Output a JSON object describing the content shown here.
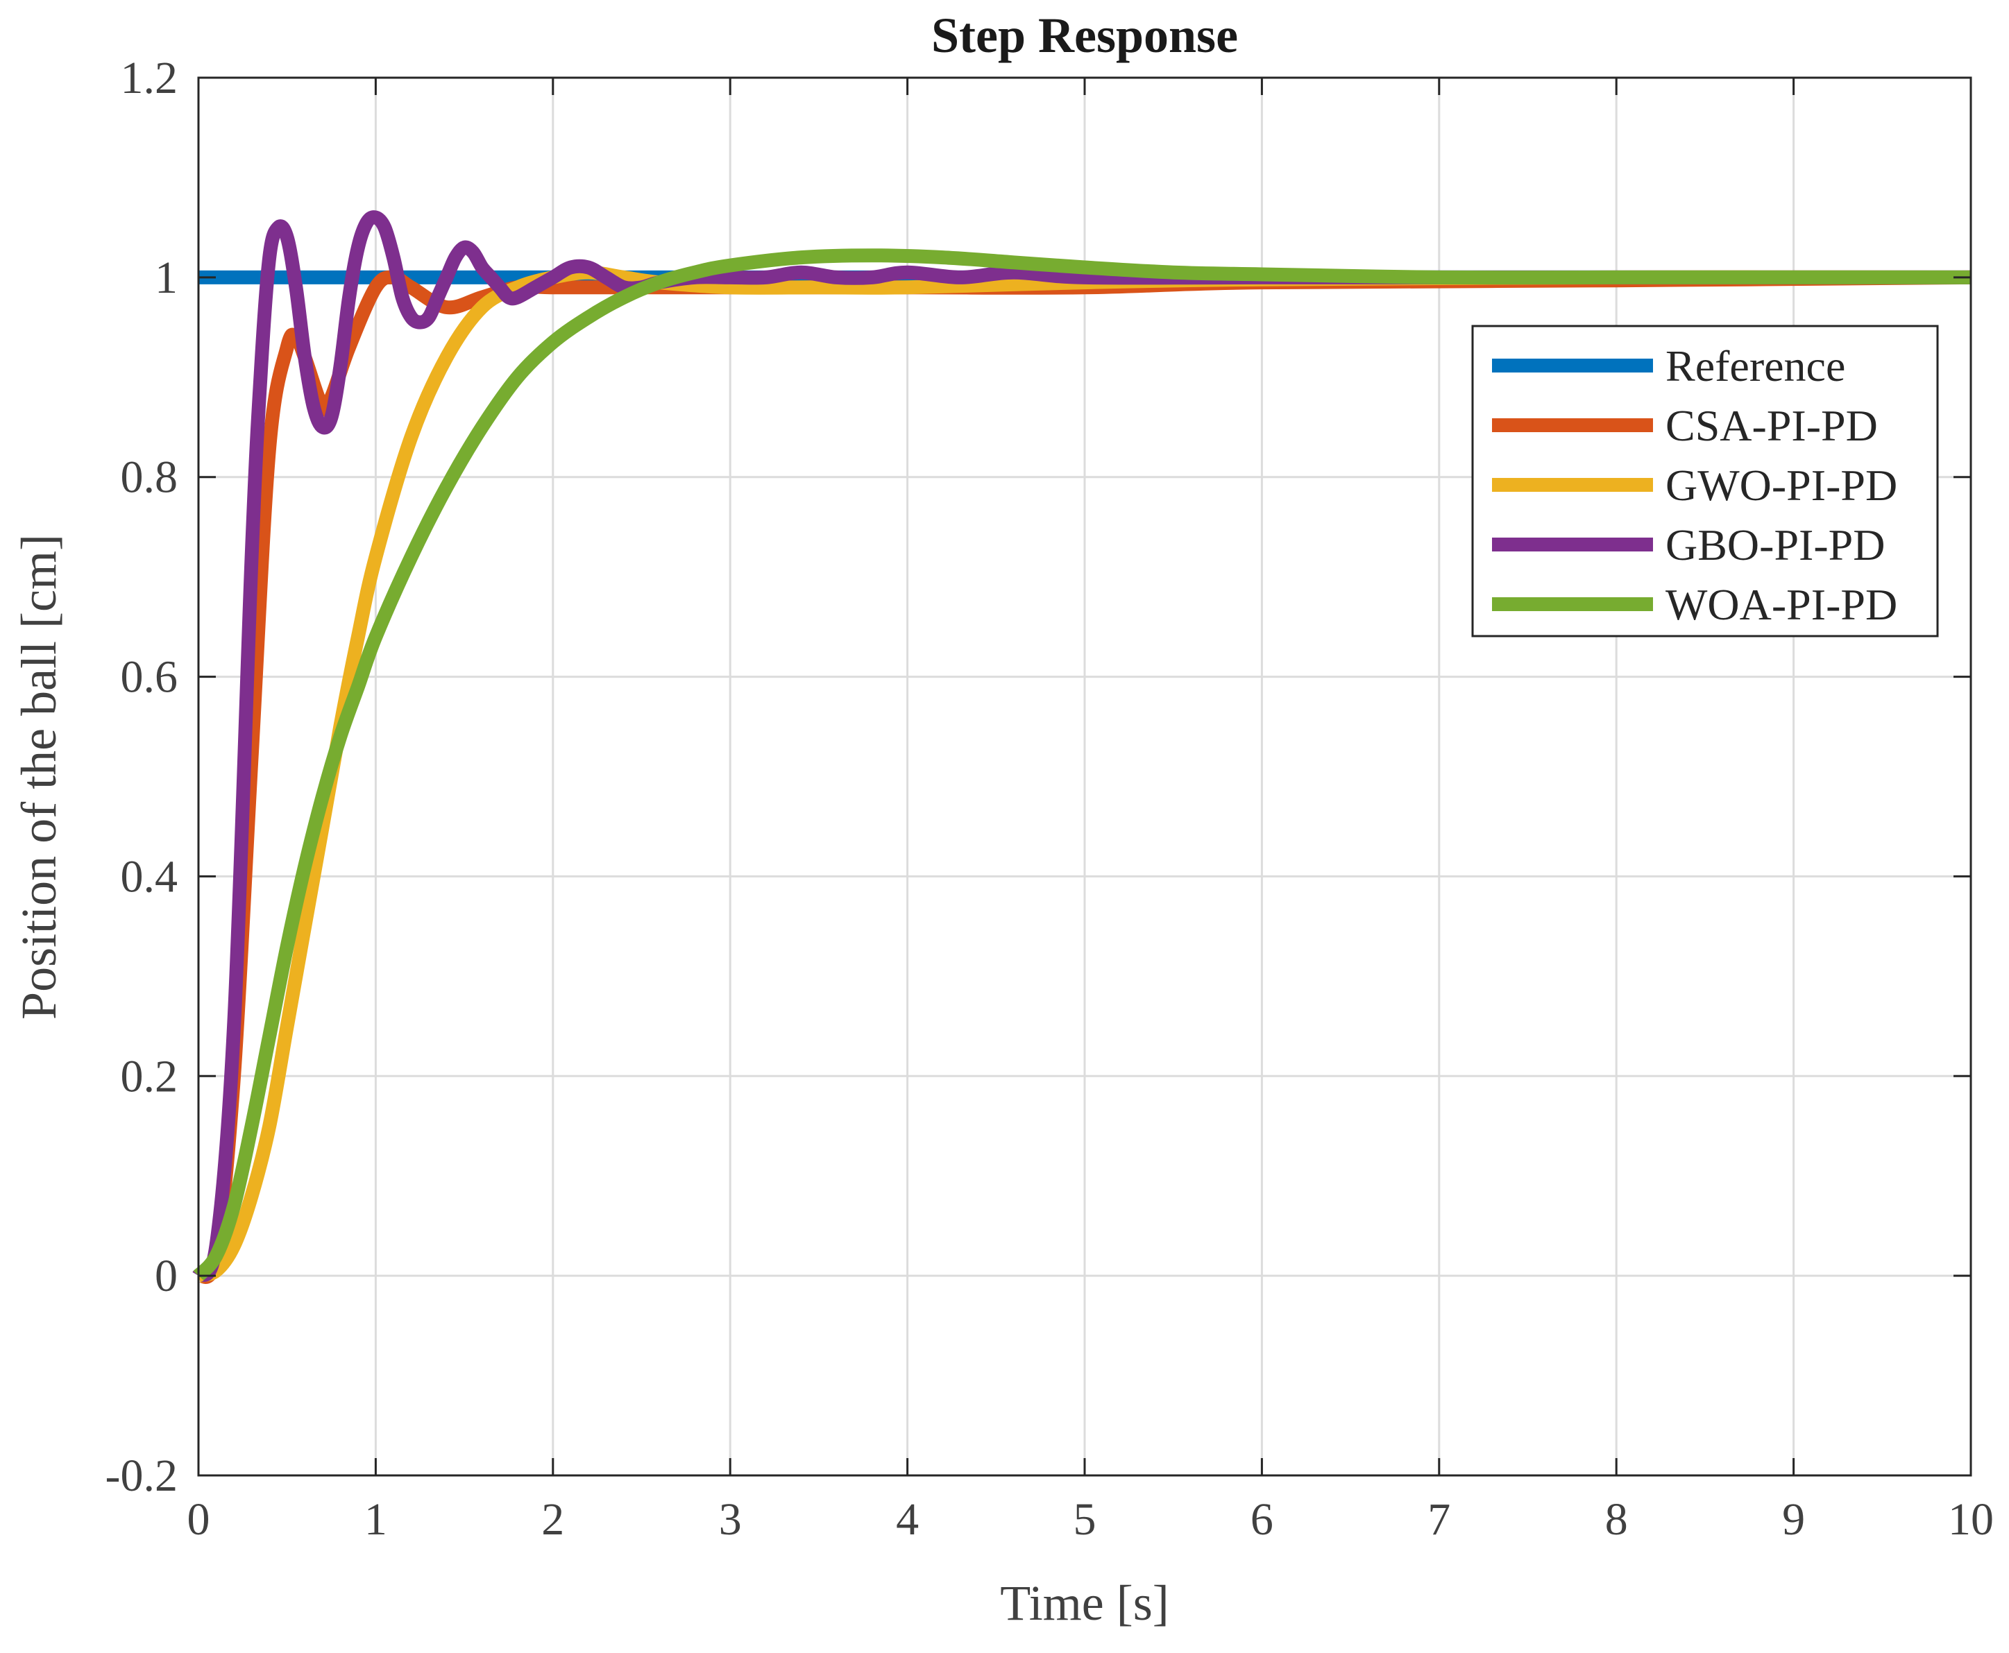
{
  "chart_data": {
    "type": "line",
    "title": "Step Response",
    "xlabel": "Time [s]",
    "ylabel": "Position of the ball [cm]",
    "xlim": [
      0,
      10
    ],
    "ylim": [
      -0.2,
      1.2
    ],
    "grid": true,
    "legend_position": "top-right",
    "x_ticks": [
      0,
      1,
      2,
      3,
      4,
      5,
      6,
      7,
      8,
      9,
      10
    ],
    "x_tick_labels": [
      "0",
      "1",
      "2",
      "3",
      "4",
      "5",
      "6",
      "7",
      "8",
      "9",
      "10"
    ],
    "y_ticks": [
      -0.2,
      0,
      0.2,
      0.4,
      0.6,
      0.8,
      1.0,
      1.2
    ],
    "y_tick_labels": [
      "-0.2",
      "0",
      "0.2",
      "0.4",
      "0.6",
      "0.8",
      "1",
      "1.2"
    ],
    "series": [
      {
        "name": "Reference",
        "color": "#0072BD",
        "x": [
          0,
          10
        ],
        "y": [
          1.0,
          1.0
        ]
      },
      {
        "name": "CSA-PI-PD",
        "color": "#D95319",
        "x": [
          0,
          0.1,
          0.2,
          0.3,
          0.4,
          0.5,
          0.55,
          0.6,
          0.7,
          0.75,
          0.85,
          1.0,
          1.1,
          1.2,
          1.4,
          1.6,
          1.8,
          2.0,
          2.2,
          2.4,
          2.7,
          3.0,
          4.0,
          5.0,
          6.0,
          8.0,
          10.0
        ],
        "y": [
          0,
          0.02,
          0.2,
          0.52,
          0.83,
          0.93,
          0.94,
          0.92,
          0.87,
          0.88,
          0.93,
          0.99,
          1.0,
          0.99,
          0.97,
          0.98,
          0.99,
          0.99,
          0.99,
          0.99,
          0.99,
          0.99,
          0.99,
          0.99,
          0.995,
          0.997,
          1.0
        ]
      },
      {
        "name": "GWO-PI-PD",
        "color": "#EDB120",
        "x": [
          0,
          0.1,
          0.2,
          0.3,
          0.4,
          0.5,
          0.6,
          0.7,
          0.8,
          0.9,
          1.0,
          1.2,
          1.4,
          1.6,
          1.8,
          2.0,
          2.2,
          2.4,
          2.6,
          3.0,
          3.5,
          4.0,
          5.0,
          6.0,
          8.0,
          10.0
        ],
        "y": [
          0,
          0.005,
          0.03,
          0.08,
          0.15,
          0.25,
          0.35,
          0.45,
          0.55,
          0.64,
          0.72,
          0.84,
          0.92,
          0.97,
          0.99,
          1.0,
          1.005,
          1.0,
          0.995,
          0.99,
          0.99,
          0.99,
          0.995,
          0.998,
          1.0,
          1.0
        ]
      },
      {
        "name": "GBO-PI-PD",
        "color": "#7E2F8E",
        "x": [
          0,
          0.1,
          0.2,
          0.3,
          0.35,
          0.4,
          0.45,
          0.5,
          0.55,
          0.6,
          0.65,
          0.7,
          0.75,
          0.8,
          0.85,
          0.9,
          0.95,
          1.0,
          1.05,
          1.1,
          1.15,
          1.2,
          1.25,
          1.3,
          1.35,
          1.4,
          1.45,
          1.5,
          1.55,
          1.6,
          1.65,
          1.7,
          1.75,
          1.8,
          1.9,
          2.0,
          2.1,
          2.2,
          2.3,
          2.4,
          2.5,
          2.6,
          2.8,
          3.0,
          3.2,
          3.4,
          3.6,
          3.8,
          4.0,
          4.3,
          4.6,
          5.0,
          6.0,
          8.0,
          10.0
        ],
        "y": [
          0,
          0.03,
          0.25,
          0.72,
          0.9,
          1.02,
          1.05,
          1.04,
          0.99,
          0.92,
          0.87,
          0.85,
          0.86,
          0.91,
          0.98,
          1.03,
          1.055,
          1.06,
          1.05,
          1.02,
          0.98,
          0.96,
          0.955,
          0.96,
          0.98,
          1.0,
          1.02,
          1.03,
          1.025,
          1.01,
          1.0,
          0.99,
          0.98,
          0.98,
          0.99,
          1.0,
          1.01,
          1.01,
          1.0,
          0.99,
          0.99,
          0.995,
          1.0,
          1.0,
          1.0,
          1.005,
          1.0,
          1.0,
          1.005,
          1.0,
          1.005,
          1.0,
          1.0,
          1.0,
          1.0
        ]
      },
      {
        "name": "WOA-PI-PD",
        "color": "#77AC30",
        "x": [
          0,
          0.1,
          0.2,
          0.3,
          0.4,
          0.5,
          0.6,
          0.7,
          0.8,
          0.9,
          1.0,
          1.2,
          1.4,
          1.6,
          1.8,
          2.0,
          2.2,
          2.4,
          2.6,
          2.8,
          3.0,
          3.4,
          3.8,
          4.2,
          4.6,
          5.0,
          5.5,
          6.0,
          7.0,
          8.0,
          9.0,
          10.0
        ],
        "y": [
          0,
          0.02,
          0.07,
          0.15,
          0.24,
          0.33,
          0.41,
          0.48,
          0.54,
          0.59,
          0.64,
          0.72,
          0.79,
          0.85,
          0.9,
          0.935,
          0.96,
          0.98,
          0.995,
          1.005,
          1.012,
          1.02,
          1.022,
          1.02,
          1.015,
          1.01,
          1.005,
          1.003,
          1.0,
          1.0,
          1.0,
          1.0
        ]
      }
    ]
  }
}
